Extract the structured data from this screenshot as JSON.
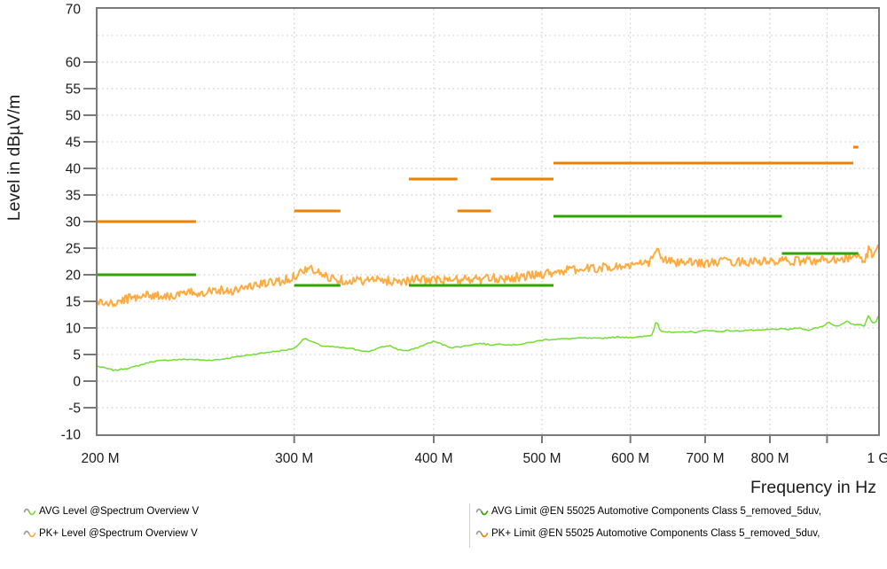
{
  "chart_data": {
    "type": "line",
    "title": "",
    "ylabel": "Level in dBµV/m",
    "xlabel": "Frequency in Hz",
    "x_scale": "log",
    "x_range_mhz": [
      200,
      1000
    ],
    "ylim": [
      -10,
      70
    ],
    "grid": "dotted",
    "colors": {
      "frame": "#7a7a7a",
      "grid": "#c3c3c3",
      "text": "#1b1b1b",
      "background": "#ffffff"
    },
    "y_ticks": [
      {
        "value": 70,
        "label": "70",
        "dash": false
      },
      {
        "value": 65,
        "label": "",
        "dash": false
      },
      {
        "value": 60,
        "label": "60",
        "dash": true
      },
      {
        "value": 55,
        "label": "55",
        "dash": true
      },
      {
        "value": 50,
        "label": "50",
        "dash": true
      },
      {
        "value": 45,
        "label": "45",
        "dash": true
      },
      {
        "value": 40,
        "label": "40",
        "dash": true
      },
      {
        "value": 35,
        "label": "35",
        "dash": true
      },
      {
        "value": 30,
        "label": "30",
        "dash": true
      },
      {
        "value": 25,
        "label": "25",
        "dash": true
      },
      {
        "value": 20,
        "label": "20",
        "dash": true
      },
      {
        "value": 15,
        "label": "15",
        "dash": true
      },
      {
        "value": 10,
        "label": "10",
        "dash": true
      },
      {
        "value": 5,
        "label": "5",
        "dash": true
      },
      {
        "value": 0,
        "label": "0",
        "dash": true
      },
      {
        "value": -5,
        "label": "-5",
        "dash": true
      },
      {
        "value": -10,
        "label": "-10",
        "dash": false
      }
    ],
    "x_ticks": [
      {
        "mhz": 200,
        "label": "200 M",
        "dash": false,
        "grid": false
      },
      {
        "mhz": 300,
        "label": "300 M",
        "dash": true,
        "grid": true
      },
      {
        "mhz": 400,
        "label": "400 M",
        "dash": true,
        "grid": true
      },
      {
        "mhz": 500,
        "label": "500 M",
        "dash": true,
        "grid": true
      },
      {
        "mhz": 600,
        "label": "600 M",
        "dash": true,
        "grid": true
      },
      {
        "mhz": 700,
        "label": "700 M",
        "dash": true,
        "grid": true
      },
      {
        "mhz": 800,
        "label": "800 M",
        "dash": true,
        "grid": true
      },
      {
        "mhz": 900,
        "label": "",
        "dash": true,
        "grid": true
      },
      {
        "mhz": 1000,
        "label": "1 G",
        "dash": false,
        "grid": false
      }
    ],
    "series": [
      {
        "id": "avg-trace",
        "name": "AVG Level @Spectrum Overview V",
        "kind": "trace",
        "z": 2,
        "color": "#72de2f",
        "stroke_width": 1.5,
        "noise_amp_db": 0.12,
        "noise_seed": 7,
        "samples": 400,
        "points_mhz_db": [
          [
            200,
            2.8
          ],
          [
            207,
            2.0
          ],
          [
            215,
            2.6
          ],
          [
            224,
            3.7
          ],
          [
            233,
            4.0
          ],
          [
            242,
            4.1
          ],
          [
            250,
            3.9
          ],
          [
            258,
            4.1
          ],
          [
            267,
            4.6
          ],
          [
            277,
            5.1
          ],
          [
            286,
            5.5
          ],
          [
            295,
            5.8
          ],
          [
            301,
            6.3
          ],
          [
            306,
            8.1
          ],
          [
            311,
            7.4
          ],
          [
            318,
            6.6
          ],
          [
            326,
            6.4
          ],
          [
            334,
            6.2
          ],
          [
            342,
            5.9
          ],
          [
            349,
            5.5
          ],
          [
            357,
            6.2
          ],
          [
            365,
            6.7
          ],
          [
            372,
            5.9
          ],
          [
            379,
            5.7
          ],
          [
            386,
            6.2
          ],
          [
            393,
            6.9
          ],
          [
            400,
            7.5
          ],
          [
            407,
            6.9
          ],
          [
            415,
            6.3
          ],
          [
            424,
            6.5
          ],
          [
            433,
            6.9
          ],
          [
            441,
            7.1
          ],
          [
            450,
            6.8
          ],
          [
            460,
            7.0
          ],
          [
            470,
            6.8
          ],
          [
            481,
            7.0
          ],
          [
            492,
            7.4
          ],
          [
            503,
            7.8
          ],
          [
            515,
            7.9
          ],
          [
            530,
            8.0
          ],
          [
            545,
            8.1
          ],
          [
            560,
            8.0
          ],
          [
            575,
            8.2
          ],
          [
            590,
            8.3
          ],
          [
            605,
            8.2
          ],
          [
            618,
            8.4
          ],
          [
            628,
            8.7
          ],
          [
            633,
            11.6
          ],
          [
            638,
            9.5
          ],
          [
            648,
            9.2
          ],
          [
            660,
            9.1
          ],
          [
            673,
            9.3
          ],
          [
            688,
            9.2
          ],
          [
            703,
            9.6
          ],
          [
            718,
            9.3
          ],
          [
            733,
            9.5
          ],
          [
            748,
            9.4
          ],
          [
            764,
            9.6
          ],
          [
            780,
            9.5
          ],
          [
            797,
            9.7
          ],
          [
            814,
            9.8
          ],
          [
            830,
            9.7
          ],
          [
            848,
            10.0
          ],
          [
            865,
            9.6
          ],
          [
            880,
            10.0
          ],
          [
            893,
            10.3
          ],
          [
            903,
            11.2
          ],
          [
            913,
            10.4
          ],
          [
            925,
            10.5
          ],
          [
            938,
            11.2
          ],
          [
            950,
            10.6
          ],
          [
            962,
            10.7
          ],
          [
            972,
            10.4
          ],
          [
            980,
            12.4
          ],
          [
            987,
            11.0
          ],
          [
            994,
            10.9
          ],
          [
            1000,
            12.2
          ]
        ]
      },
      {
        "id": "pk-trace",
        "name": "PK+ Level @Spectrum Overview V",
        "kind": "trace",
        "z": 1,
        "color": "#ffab40",
        "stroke_width": 2.0,
        "noise_amp_db": 0.85,
        "noise_seed": 3,
        "samples": 650,
        "points_mhz_db": [
          [
            200,
            14.9
          ],
          [
            206,
            14.4
          ],
          [
            212,
            15.4
          ],
          [
            219,
            16.2
          ],
          [
            226,
            16.1
          ],
          [
            233,
            16.0
          ],
          [
            241,
            16.5
          ],
          [
            249,
            16.8
          ],
          [
            256,
            17.2
          ],
          [
            263,
            17.0
          ],
          [
            271,
            17.6
          ],
          [
            280,
            18.2
          ],
          [
            289,
            18.7
          ],
          [
            297,
            19.2
          ],
          [
            304,
            20.5
          ],
          [
            308,
            21.2
          ],
          [
            313,
            20.7
          ],
          [
            319,
            19.8
          ],
          [
            326,
            19.3
          ],
          [
            334,
            18.9
          ],
          [
            343,
            18.9
          ],
          [
            352,
            19.0
          ],
          [
            362,
            18.9
          ],
          [
            372,
            18.8
          ],
          [
            382,
            19.0
          ],
          [
            392,
            19.1
          ],
          [
            402,
            19.0
          ],
          [
            412,
            18.9
          ],
          [
            422,
            19.1
          ],
          [
            432,
            19.2
          ],
          [
            442,
            19.1
          ],
          [
            452,
            19.3
          ],
          [
            462,
            19.3
          ],
          [
            472,
            19.5
          ],
          [
            483,
            19.7
          ],
          [
            494,
            20.0
          ],
          [
            506,
            20.3
          ],
          [
            518,
            20.7
          ],
          [
            532,
            20.9
          ],
          [
            547,
            21.1
          ],
          [
            562,
            21.3
          ],
          [
            578,
            21.4
          ],
          [
            594,
            21.7
          ],
          [
            610,
            21.9
          ],
          [
            622,
            22.1
          ],
          [
            630,
            23.6
          ],
          [
            634,
            24.8
          ],
          [
            639,
            23.3
          ],
          [
            648,
            22.5
          ],
          [
            660,
            22.3
          ],
          [
            674,
            22.2
          ],
          [
            690,
            22.3
          ],
          [
            706,
            22.2
          ],
          [
            724,
            22.4
          ],
          [
            742,
            22.5
          ],
          [
            760,
            22.4
          ],
          [
            780,
            22.6
          ],
          [
            800,
            22.3
          ],
          [
            820,
            22.6
          ],
          [
            840,
            22.5
          ],
          [
            860,
            22.7
          ],
          [
            880,
            22.6
          ],
          [
            900,
            22.9
          ],
          [
            918,
            23.0
          ],
          [
            936,
            23.2
          ],
          [
            952,
            23.5
          ],
          [
            964,
            23.1
          ],
          [
            973,
            22.4
          ],
          [
            982,
            25.2
          ],
          [
            988,
            23.9
          ],
          [
            995,
            24.5
          ],
          [
            1000,
            25.2
          ]
        ]
      },
      {
        "id": "avg-limit",
        "name": "AVG Limit @EN 55025 Automotive Components Class 5_removed_5duv,",
        "kind": "limit",
        "z": 4,
        "color": "#2ea400",
        "stroke_width": 3,
        "segments_mhz_db": [
          [
            200,
            245,
            20
          ],
          [
            300,
            330,
            18
          ],
          [
            380,
            512,
            18
          ],
          [
            512,
            820,
            31
          ],
          [
            820,
            960,
            24
          ]
        ]
      },
      {
        "id": "pk-limit",
        "name": "PK+ Limit @EN 55025 Automotive Components Class 5_removed_5duv,",
        "kind": "limit",
        "z": 3,
        "color": "#ee8000",
        "stroke_width": 3,
        "segments_mhz_db": [
          [
            200,
            245,
            30
          ],
          [
            300,
            330,
            32
          ],
          [
            380,
            420,
            38
          ],
          [
            420,
            450,
            32
          ],
          [
            450,
            512,
            38
          ],
          [
            512,
            950,
            41
          ],
          [
            950,
            960,
            44
          ]
        ]
      }
    ]
  }
}
